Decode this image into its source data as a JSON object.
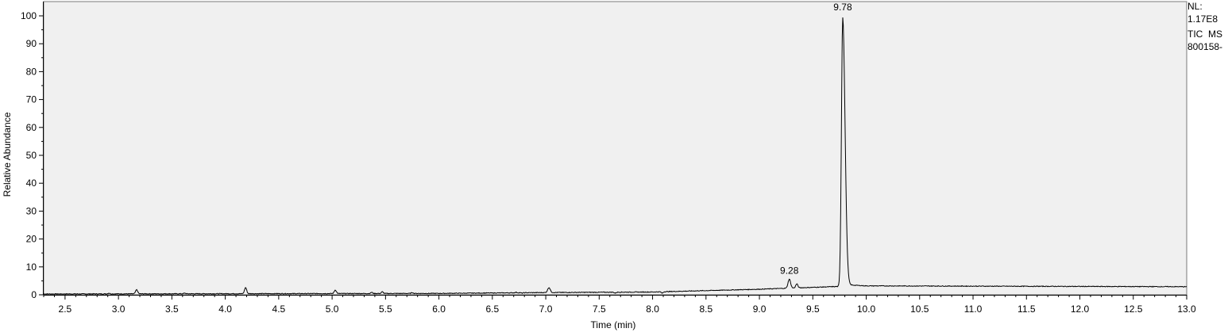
{
  "chart_data": {
    "type": "line",
    "xlabel": "Time (min)",
    "ylabel": "Relative Abundance",
    "xlim": [
      2.3,
      13.0
    ],
    "ylim": [
      0,
      100
    ],
    "x_ticks": [
      2.5,
      3.0,
      3.5,
      4.0,
      4.5,
      5.0,
      5.5,
      6.0,
      6.5,
      7.0,
      7.5,
      8.0,
      8.5,
      9.0,
      9.5,
      10.0,
      10.5,
      11.0,
      11.5,
      12.0,
      12.5,
      13.0
    ],
    "y_ticks": [
      0,
      10,
      20,
      30,
      40,
      50,
      60,
      70,
      80,
      90,
      100
    ],
    "grid": false,
    "series": [
      {
        "baseline": [
          [
            2.3,
            0.3
          ],
          [
            6.0,
            0.5
          ],
          [
            7.0,
            0.8
          ],
          [
            8.0,
            1.0
          ],
          [
            8.5,
            1.5
          ],
          [
            9.0,
            2.0
          ],
          [
            9.6,
            2.8
          ],
          [
            9.76,
            3.0
          ],
          [
            9.85,
            3.5
          ],
          [
            10.0,
            3.2
          ],
          [
            13.0,
            2.9
          ]
        ],
        "peaks": [
          {
            "x": 2.91,
            "y": 0.6,
            "w": 0.008
          },
          {
            "x": 3.17,
            "y": 1.8,
            "w": 0.01
          },
          {
            "x": 3.62,
            "y": 0.6,
            "w": 0.008
          },
          {
            "x": 4.19,
            "y": 2.6,
            "w": 0.01
          },
          {
            "x": 5.03,
            "y": 1.7,
            "w": 0.01
          },
          {
            "x": 5.37,
            "y": 0.9,
            "w": 0.008
          },
          {
            "x": 5.47,
            "y": 1.1,
            "w": 0.008
          },
          {
            "x": 5.75,
            "y": 0.8,
            "w": 0.008
          },
          {
            "x": 6.72,
            "y": 0.9,
            "w": 0.008
          },
          {
            "x": 6.78,
            "y": 0.6,
            "w": 0.008
          },
          {
            "x": 7.03,
            "y": 2.6,
            "w": 0.012
          },
          {
            "x": 7.65,
            "y": 0.6,
            "w": 0.008
          },
          {
            "x": 8.09,
            "y": 0.6,
            "w": 0.008
          },
          {
            "x": 9.28,
            "y": 5.6,
            "w": 0.012
          },
          {
            "x": 9.35,
            "y": 3.9,
            "w": 0.01
          },
          {
            "x": 9.78,
            "y": 99.5,
            "w": 0.012
          }
        ]
      }
    ],
    "annotations": [
      {
        "x": 9.78,
        "y": 100,
        "text": "9.78"
      },
      {
        "x": 9.28,
        "y": 5.6,
        "text": "9.28"
      }
    ],
    "info_lines": [
      "NL:",
      "1.17E8",
      "TIC  MS",
      "800158-"
    ],
    "colors": {
      "plot_background": "#f0f0f0",
      "trace": "#000000",
      "axis": "#000000"
    }
  }
}
